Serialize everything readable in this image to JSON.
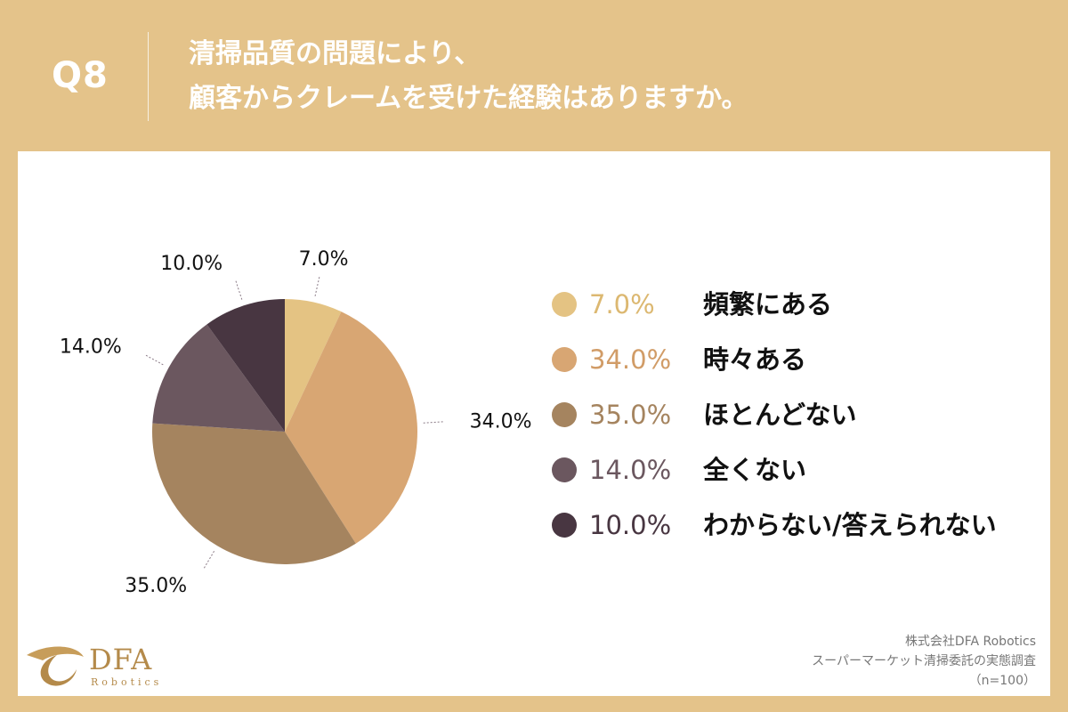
{
  "header": {
    "q_number": "Q8",
    "title_line1": "清掃品質の問題により、",
    "title_line2": "顧客からクレームを受けた経験はありますか。"
  },
  "chart_data": {
    "type": "pie",
    "categories": [
      "頻繁にある",
      "時々ある",
      "ほとんどない",
      "全くない",
      "わからない/答えられない"
    ],
    "values": [
      7.0,
      34.0,
      35.0,
      14.0,
      10.0
    ],
    "labels": [
      "7.0%",
      "34.0%",
      "35.0%",
      "14.0%",
      "10.0%"
    ],
    "colors": [
      "#e4c383",
      "#d8a673",
      "#a5845f",
      "#6b575f",
      "#483641"
    ],
    "legend_placement": "right"
  },
  "source": {
    "company": "株式会社DFA Robotics",
    "survey": "スーパーマーケット清掃委託の実態調査",
    "sample": "（n=100）"
  },
  "logo": {
    "name": "DFA",
    "sub": "Robotics"
  }
}
